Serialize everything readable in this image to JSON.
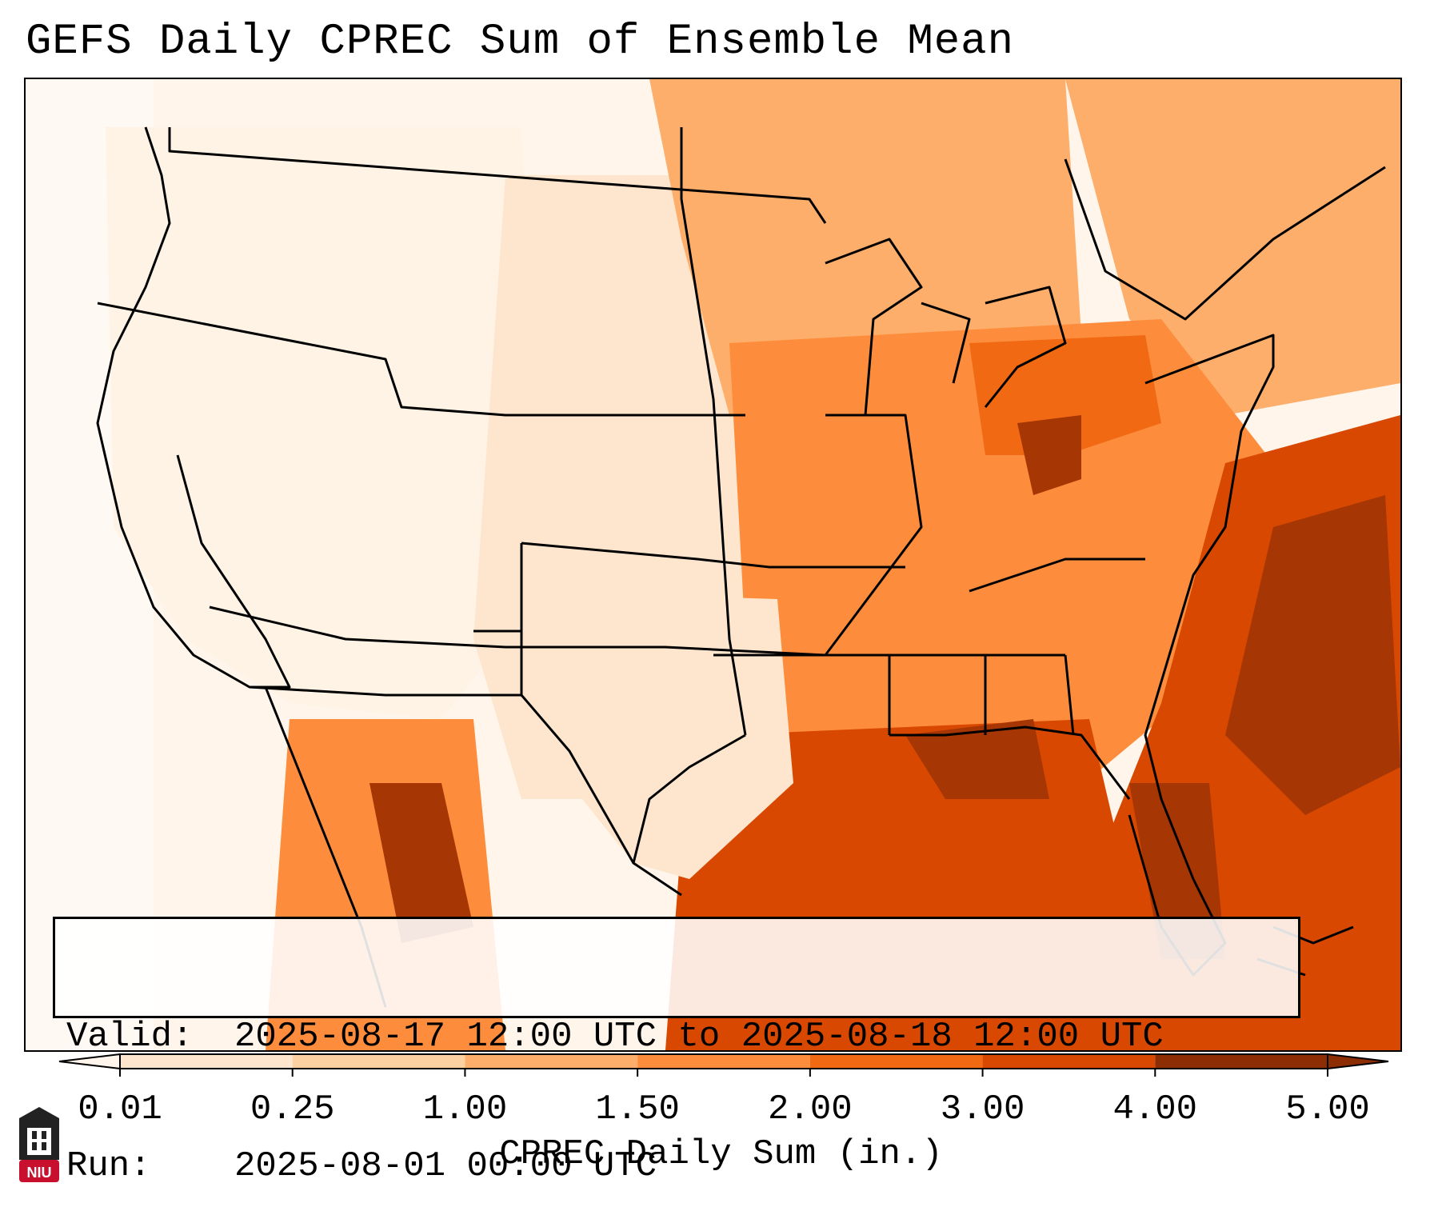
{
  "title": "GEFS Daily CPREC Sum of Ensemble Mean",
  "info": {
    "valid_label": "Valid:",
    "valid_value": "2025-08-17 12:00 UTC to 2025-08-18 12:00 UTC",
    "run_label": "Run:",
    "run_value": "2025-08-01 00:00 UTC"
  },
  "colorbar": {
    "title": "CPREC Daily Sum (in.)",
    "ticks": [
      "0.01",
      "0.25",
      "1.00",
      "1.50",
      "2.00",
      "3.00",
      "4.00",
      "5.00"
    ],
    "colors": [
      "#fff5eb",
      "#fee6ce",
      "#fdd0a2",
      "#fdae6b",
      "#fd8d3c",
      "#f16913",
      "#d94801",
      "#8c2d04"
    ]
  },
  "logo": {
    "text": "NIU",
    "color": "#c8102e"
  },
  "map": {
    "region": "Continental United States",
    "field": "CPREC daily sum ensemble mean",
    "wettest_areas": [
      "Southeast US coast and western Atlantic",
      "Gulf of Mexico",
      "Western Mexico",
      "Ohio Valley / Pennsylvania"
    ]
  }
}
